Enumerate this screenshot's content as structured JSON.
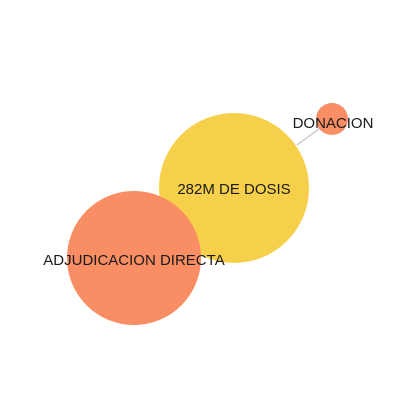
{
  "colors": {
    "center": "#f7d04b",
    "leaf": "#f98d63",
    "edge": "#b5b5b5",
    "label": "#1a1a1a",
    "background": "#ffffff"
  },
  "nodes": [
    {
      "id": "center",
      "label": "282M DE DOSIS",
      "role": "center"
    },
    {
      "id": "adjudicacion",
      "label": "ADJUDICACION DIRECTA",
      "role": "leaf"
    },
    {
      "id": "donacion",
      "label": "DONACION",
      "role": "leaf"
    }
  ],
  "edges": [
    {
      "from": "center",
      "to": "adjudicacion"
    },
    {
      "from": "center",
      "to": "donacion"
    }
  ]
}
